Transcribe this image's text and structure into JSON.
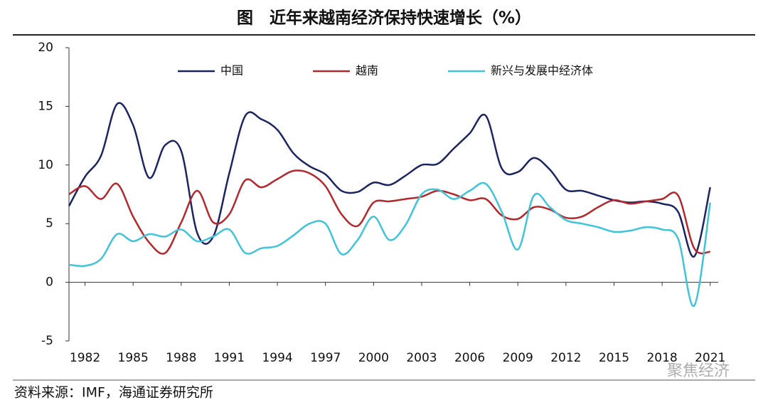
{
  "chart_data": {
    "type": "line",
    "title": "图　近年来越南经济保持快速增长（%）",
    "source": "资料来源：IMF，海通证券研究所",
    "watermark": "聚焦经济",
    "x": [
      1981,
      1982,
      1983,
      1984,
      1985,
      1986,
      1987,
      1988,
      1989,
      1990,
      1991,
      1992,
      1993,
      1994,
      1995,
      1996,
      1997,
      1998,
      1999,
      2000,
      2001,
      2002,
      2003,
      2004,
      2005,
      2006,
      2007,
      2008,
      2009,
      2010,
      2011,
      2012,
      2013,
      2014,
      2015,
      2016,
      2017,
      2018,
      2019,
      2020,
      2021
    ],
    "xlim": [
      1980.6,
      2021.5
    ],
    "xticks": [
      1982,
      1985,
      1988,
      1991,
      1994,
      1997,
      2000,
      2003,
      2006,
      2009,
      2012,
      2015,
      2018,
      2021
    ],
    "ylim": [
      -5,
      20
    ],
    "yticks": [
      20,
      15,
      10,
      5,
      0,
      -5
    ],
    "grid": false,
    "legend": "top",
    "series": [
      {
        "name": "中国",
        "color": "#1c2461",
        "values": [
          6.5,
          9.0,
          10.8,
          15.2,
          13.4,
          8.9,
          11.7,
          11.2,
          4.2,
          3.9,
          9.3,
          14.2,
          13.9,
          13.0,
          11.0,
          9.9,
          9.2,
          7.8,
          7.7,
          8.5,
          8.3,
          9.1,
          10.0,
          10.1,
          11.4,
          12.7,
          14.2,
          9.7,
          9.4,
          10.6,
          9.6,
          7.9,
          7.8,
          7.4,
          7.0,
          6.8,
          6.9,
          6.7,
          6.0,
          2.2,
          8.1
        ]
      },
      {
        "name": "越南",
        "color": "#b3282d",
        "values": [
          7.5,
          8.2,
          7.1,
          8.4,
          5.6,
          3.4,
          2.5,
          5.1,
          7.8,
          5.1,
          5.8,
          8.7,
          8.1,
          8.8,
          9.5,
          9.3,
          8.2,
          5.8,
          4.8,
          6.8,
          6.9,
          7.1,
          7.3,
          7.8,
          7.5,
          7.0,
          7.1,
          5.7,
          5.4,
          6.4,
          6.2,
          5.5,
          5.6,
          6.4,
          7.0,
          6.7,
          6.9,
          7.1,
          7.4,
          2.9,
          2.6
        ]
      },
      {
        "name": "新兴与发展中经济体",
        "color": "#3fc4d9",
        "values": [
          1.5,
          1.4,
          2.0,
          4.1,
          3.5,
          4.1,
          3.9,
          4.5,
          3.5,
          3.9,
          4.5,
          2.5,
          2.9,
          3.1,
          4.0,
          5.0,
          5.0,
          2.4,
          3.6,
          5.6,
          3.6,
          4.9,
          7.5,
          7.9,
          7.1,
          7.8,
          8.4,
          6.0,
          2.8,
          7.4,
          6.4,
          5.3,
          5.0,
          4.7,
          4.3,
          4.4,
          4.7,
          4.5,
          3.7,
          -2.0,
          6.8
        ]
      }
    ]
  }
}
